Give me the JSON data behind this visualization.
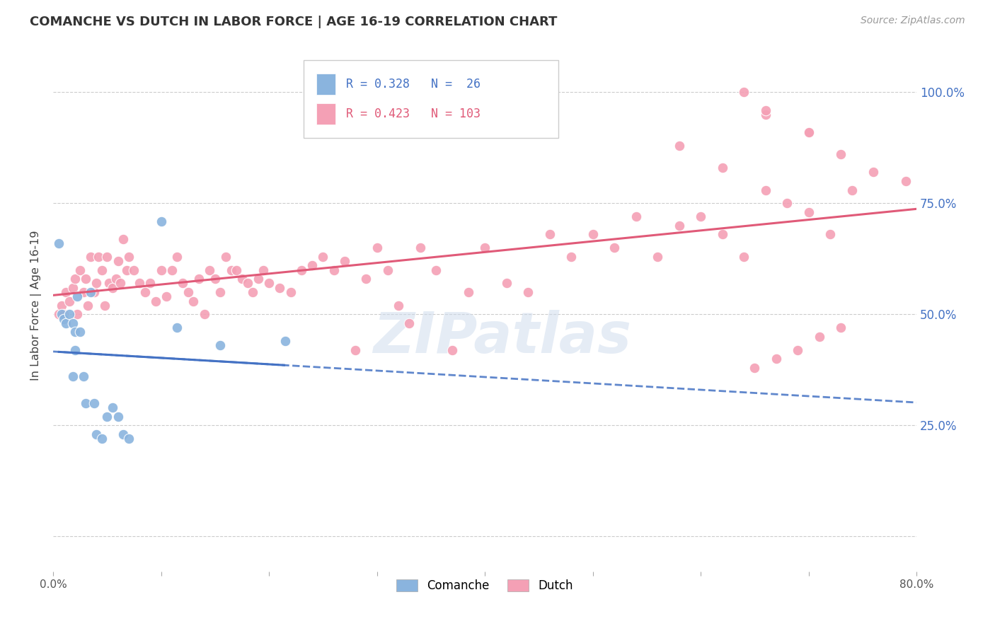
{
  "title": "COMANCHE VS DUTCH IN LABOR FORCE | AGE 16-19 CORRELATION CHART",
  "source": "Source: ZipAtlas.com",
  "ylabel": "In Labor Force | Age 16-19",
  "xlim": [
    0.0,
    0.8
  ],
  "ylim": [
    -0.08,
    1.12
  ],
  "comanche_R": 0.328,
  "comanche_N": 26,
  "dutch_R": 0.423,
  "dutch_N": 103,
  "comanche_color": "#8ab4de",
  "dutch_color": "#f4a0b5",
  "comanche_line_color": "#4472c4",
  "dutch_line_color": "#e05a78",
  "grid_color": "#cccccc",
  "background_color": "#ffffff",
  "watermark": "ZIPatlas",
  "comanche_x": [
    0.005,
    0.008,
    0.01,
    0.012,
    0.015,
    0.018,
    0.018,
    0.02,
    0.02,
    0.022,
    0.025,
    0.028,
    0.03,
    0.035,
    0.038,
    0.04,
    0.045,
    0.05,
    0.055,
    0.06,
    0.065,
    0.07,
    0.1,
    0.115,
    0.155,
    0.215
  ],
  "comanche_y": [
    0.66,
    0.5,
    0.49,
    0.48,
    0.5,
    0.48,
    0.36,
    0.46,
    0.42,
    0.54,
    0.46,
    0.36,
    0.3,
    0.55,
    0.3,
    0.23,
    0.22,
    0.27,
    0.29,
    0.27,
    0.23,
    0.22,
    0.71,
    0.47,
    0.43,
    0.44
  ],
  "dutch_x": [
    0.005,
    0.008,
    0.01,
    0.012,
    0.015,
    0.018,
    0.02,
    0.022,
    0.025,
    0.028,
    0.03,
    0.032,
    0.035,
    0.038,
    0.04,
    0.042,
    0.045,
    0.048,
    0.05,
    0.052,
    0.055,
    0.058,
    0.06,
    0.062,
    0.065,
    0.068,
    0.07,
    0.075,
    0.08,
    0.085,
    0.09,
    0.095,
    0.1,
    0.105,
    0.11,
    0.115,
    0.12,
    0.125,
    0.13,
    0.135,
    0.14,
    0.145,
    0.15,
    0.155,
    0.16,
    0.165,
    0.17,
    0.175,
    0.18,
    0.185,
    0.19,
    0.195,
    0.2,
    0.21,
    0.22,
    0.23,
    0.24,
    0.25,
    0.26,
    0.27,
    0.28,
    0.29,
    0.3,
    0.31,
    0.32,
    0.33,
    0.34,
    0.355,
    0.37,
    0.385,
    0.4,
    0.42,
    0.44,
    0.46,
    0.48,
    0.5,
    0.52,
    0.54,
    0.56,
    0.58,
    0.6,
    0.62,
    0.64,
    0.66,
    0.68,
    0.7,
    0.72,
    0.74,
    0.58,
    0.62,
    0.66,
    0.7,
    0.64,
    0.66,
    0.7,
    0.73,
    0.76,
    0.79,
    0.65,
    0.67,
    0.69,
    0.71,
    0.73
  ],
  "dutch_y": [
    0.5,
    0.52,
    0.5,
    0.55,
    0.53,
    0.56,
    0.58,
    0.5,
    0.6,
    0.55,
    0.58,
    0.52,
    0.63,
    0.55,
    0.57,
    0.63,
    0.6,
    0.52,
    0.63,
    0.57,
    0.56,
    0.58,
    0.62,
    0.57,
    0.67,
    0.6,
    0.63,
    0.6,
    0.57,
    0.55,
    0.57,
    0.53,
    0.6,
    0.54,
    0.6,
    0.63,
    0.57,
    0.55,
    0.53,
    0.58,
    0.5,
    0.6,
    0.58,
    0.55,
    0.63,
    0.6,
    0.6,
    0.58,
    0.57,
    0.55,
    0.58,
    0.6,
    0.57,
    0.56,
    0.55,
    0.6,
    0.61,
    0.63,
    0.6,
    0.62,
    0.42,
    0.58,
    0.65,
    0.6,
    0.52,
    0.48,
    0.65,
    0.6,
    0.42,
    0.55,
    0.65,
    0.57,
    0.55,
    0.68,
    0.63,
    0.68,
    0.65,
    0.72,
    0.63,
    0.7,
    0.72,
    0.68,
    0.63,
    0.78,
    0.75,
    0.73,
    0.68,
    0.78,
    0.88,
    0.83,
    0.95,
    0.91,
    1.0,
    0.96,
    0.91,
    0.86,
    0.82,
    0.8,
    0.38,
    0.4,
    0.42,
    0.45,
    0.47
  ]
}
